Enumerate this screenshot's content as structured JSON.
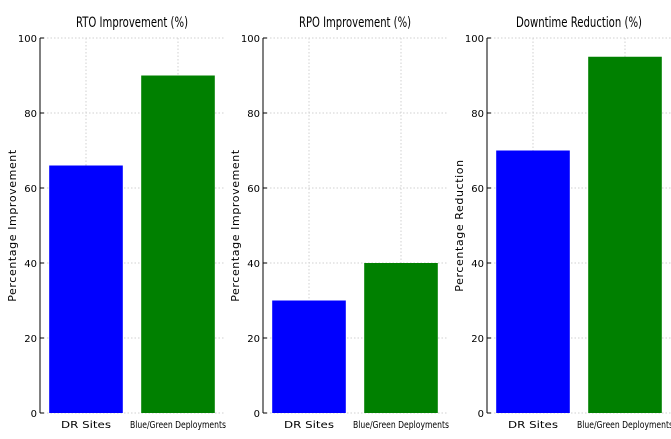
{
  "chart_data": [
    {
      "type": "bar",
      "title": "RTO Improvement (%)",
      "ylabel": "Percentage Improvement",
      "xlabel": "",
      "categories": [
        "DR Sites",
        "Blue/Green Deployments"
      ],
      "values": [
        66,
        90
      ],
      "colors": [
        "#0000ff",
        "#008000"
      ],
      "ylim": [
        0,
        100
      ],
      "yticks": [
        0,
        20,
        40,
        60,
        80,
        100
      ],
      "grid": true
    },
    {
      "type": "bar",
      "title": "RPO Improvement (%)",
      "ylabel": "Percentage Improvement",
      "xlabel": "",
      "categories": [
        "DR Sites",
        "Blue/Green Deployments"
      ],
      "values": [
        30,
        40
      ],
      "colors": [
        "#0000ff",
        "#008000"
      ],
      "ylim": [
        0,
        100
      ],
      "yticks": [
        0,
        20,
        40,
        60,
        80,
        100
      ],
      "grid": true
    },
    {
      "type": "bar",
      "title": "Downtime Reduction (%)",
      "ylabel": "Percentage Reduction",
      "xlabel": "",
      "categories": [
        "DR Sites",
        "Blue/Green Deployments"
      ],
      "values": [
        70,
        95
      ],
      "colors": [
        "#0000ff",
        "#008000"
      ],
      "ylim": [
        0,
        100
      ],
      "yticks": [
        0,
        20,
        40,
        60,
        80,
        100
      ],
      "grid": true
    }
  ]
}
